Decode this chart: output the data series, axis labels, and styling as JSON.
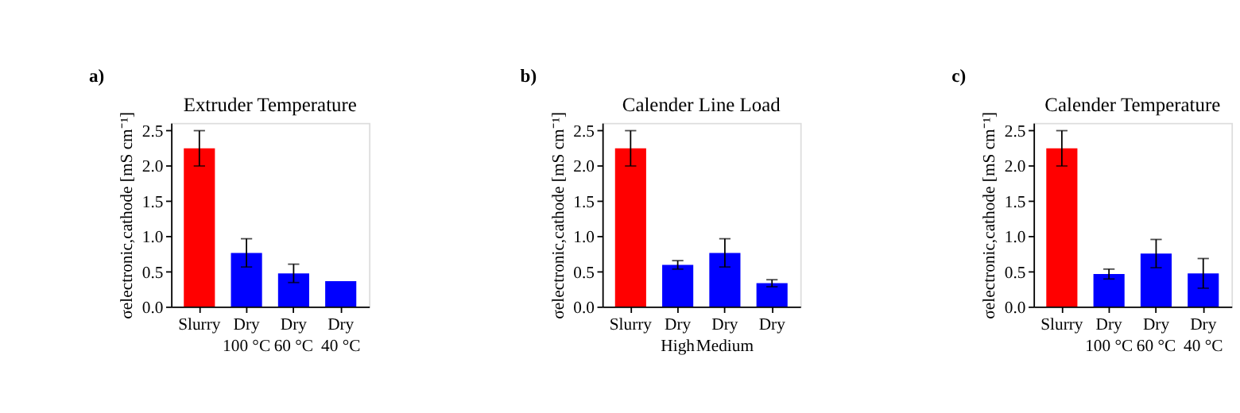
{
  "chart_data": [
    {
      "type": "bar",
      "title": "Extruder Temperature",
      "annotations": [
        "a)"
      ],
      "ylabel": "σelectronic,cathode [mS cm⁻¹]",
      "categories": [
        "Slurry",
        "Dry\n100 °C",
        "Dry\n60 °C",
        "Dry\n40 °C"
      ],
      "values": [
        2.24,
        0.76,
        0.47,
        0.36
      ],
      "errors": [
        0.25,
        0.2,
        0.13,
        null
      ],
      "colors": [
        "#ff0000",
        "#0000ff",
        "#0000ff",
        "#0000ff"
      ],
      "ylim": [
        0,
        2.6
      ],
      "yticks": [
        {
          "value": 0,
          "label": "0.0"
        },
        0.5,
        {
          "value": 1,
          "label": "1.0"
        },
        1.5,
        {
          "value": 2,
          "label": "2.0"
        },
        2.5
      ],
      "grid": false,
      "legend": false
    },
    {
      "type": "bar",
      "title": "Calender Line Load",
      "annotations": [
        "b)"
      ],
      "ylabel": "σelectronic,cathode [mS cm⁻¹]",
      "categories": [
        "Slurry",
        "Dry\nHigh",
        "Dry\nMedium",
        "Dry"
      ],
      "values": [
        2.24,
        0.59,
        0.76,
        0.33
      ],
      "errors": [
        0.25,
        0.06,
        0.2,
        0.05
      ],
      "colors": [
        "#ff0000",
        "#0000ff",
        "#0000ff",
        "#0000ff"
      ],
      "ylim": [
        0,
        2.6
      ],
      "yticks": [
        {
          "value": 0,
          "label": "0.0"
        },
        0.5,
        {
          "value": 1,
          "label": "1.0"
        },
        1.5,
        {
          "value": 2,
          "label": "2.0"
        },
        2.5
      ],
      "grid": false,
      "legend": false
    },
    {
      "type": "bar",
      "title": "Calender Temperature",
      "annotations": [
        "c)"
      ],
      "ylabel": "σelectronic,cathode [mS cm⁻¹]",
      "categories": [
        "Slurry",
        "Dry\n100 °C",
        "Dry\n60 °C",
        "Dry\n40 °C"
      ],
      "values": [
        2.24,
        0.46,
        0.75,
        0.47
      ],
      "errors": [
        0.25,
        0.07,
        0.2,
        0.21
      ],
      "colors": [
        "#ff0000",
        "#0000ff",
        "#0000ff",
        "#0000ff"
      ],
      "ylim": [
        0,
        2.6
      ],
      "yticks": [
        {
          "value": 0,
          "label": "0.0"
        },
        0.5,
        {
          "value": 1,
          "label": "1.0"
        },
        1.5,
        {
          "value": 2,
          "label": "2.0"
        },
        2.5
      ],
      "grid": false,
      "legend": false
    }
  ]
}
